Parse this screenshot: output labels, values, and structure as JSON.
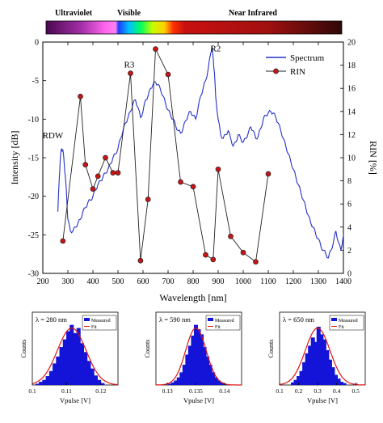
{
  "spectrum_bar": {
    "labels": [
      "Ultraviolet",
      "Visible",
      "Near Infrared"
    ]
  },
  "chart_data": [
    {
      "type": "line",
      "xlabel": "Wavelength [nm]",
      "ylabel": "Intensity [dB]",
      "y2label": "RIN [%]",
      "xlim": [
        200,
        1400
      ],
      "ylim": [
        -30,
        0
      ],
      "y2lim": [
        0,
        20
      ],
      "xticks": [
        200,
        300,
        400,
        500,
        600,
        700,
        800,
        900,
        1000,
        1100,
        1200,
        1300,
        1400
      ],
      "yticks": [
        0,
        -5,
        -10,
        -15,
        -20,
        -25,
        -30
      ],
      "y2ticks": [
        0,
        2,
        4,
        6,
        8,
        10,
        12,
        14,
        16,
        18,
        20
      ],
      "legend_position": "top-right",
      "annotations": [
        {
          "text": "RDW",
          "x": 240,
          "y": -12.5
        },
        {
          "text": "R3",
          "x": 545,
          "y": -3.3
        },
        {
          "text": "R2",
          "x": 890,
          "y": -1.2
        }
      ],
      "series": [
        {
          "name": "Spectrum",
          "axis": "left",
          "color": "#2432c8",
          "x": [
            260,
            265,
            270,
            275,
            280,
            285,
            290,
            295,
            300,
            310,
            320,
            330,
            340,
            350,
            360,
            370,
            380,
            390,
            400,
            410,
            420,
            430,
            440,
            450,
            460,
            470,
            480,
            490,
            500,
            510,
            520,
            530,
            540,
            550,
            560,
            570,
            580,
            590,
            600,
            610,
            620,
            630,
            640,
            650,
            660,
            670,
            680,
            690,
            700,
            710,
            720,
            730,
            740,
            750,
            760,
            770,
            780,
            790,
            800,
            810,
            820,
            830,
            840,
            850,
            860,
            870,
            875,
            880,
            885,
            890,
            900,
            910,
            920,
            930,
            940,
            950,
            960,
            970,
            980,
            990,
            1000,
            1010,
            1020,
            1030,
            1040,
            1050,
            1060,
            1070,
            1080,
            1090,
            1100,
            1110,
            1120,
            1130,
            1140,
            1150,
            1160,
            1170,
            1180,
            1190,
            1200,
            1210,
            1220,
            1230,
            1240,
            1250,
            1260,
            1270,
            1280,
            1290,
            1300,
            1310,
            1320,
            1330,
            1340,
            1350,
            1360,
            1370,
            1380,
            1390,
            1400
          ],
          "y": [
            -22,
            -18,
            -15,
            -13.8,
            -14,
            -15.5,
            -17.5,
            -20,
            -23,
            -24.5,
            -24.5,
            -24,
            -23.5,
            -23,
            -22,
            -21.5,
            -20.8,
            -20.5,
            -20,
            -19.2,
            -18.5,
            -18,
            -17.5,
            -17,
            -16.5,
            -15.8,
            -15,
            -14.5,
            -13.8,
            -12.5,
            -11.5,
            -10.5,
            -9.8,
            -9,
            -8,
            -7.5,
            -8.5,
            -9.8,
            -9,
            -7.5,
            -7,
            -6,
            -5.5,
            -5.2,
            -5.5,
            -6.2,
            -7,
            -8,
            -8.8,
            -9.5,
            -10,
            -10.8,
            -11.5,
            -11.8,
            -11.2,
            -10.2,
            -9.5,
            -9,
            -9.5,
            -10,
            -8.5,
            -7,
            -6,
            -5,
            -3.5,
            -1.5,
            -0.5,
            -2,
            -4,
            -7,
            -10,
            -12,
            -12.5,
            -12,
            -11.5,
            -12.5,
            -13.5,
            -13,
            -12,
            -12.5,
            -13,
            -12.5,
            -11.8,
            -11,
            -11.5,
            -12.5,
            -12.2,
            -11.2,
            -10,
            -9.5,
            -9.2,
            -9,
            -9.2,
            -9.8,
            -10.5,
            -11.5,
            -12.5,
            -13.5,
            -14.5,
            -15.5,
            -16.5,
            -17.5,
            -18.5,
            -19.5,
            -20.5,
            -21.5,
            -22.5,
            -23.5,
            -24,
            -25,
            -25.5,
            -26.5,
            -27,
            -27.5,
            -28,
            -27,
            -26,
            -24.5,
            -26,
            -27,
            -25
          ]
        },
        {
          "name": "RIN",
          "axis": "right",
          "color": "#222222",
          "marker_color": "#c81414",
          "x": [
            280,
            350,
            370,
            400,
            420,
            450,
            480,
            500,
            550,
            590,
            620,
            650,
            700,
            750,
            800,
            850,
            880,
            900,
            950,
            1000,
            1050,
            1100
          ],
          "y": [
            2.8,
            15.3,
            9.4,
            7.3,
            8.4,
            10.0,
            8.7,
            8.7,
            17.3,
            1.1,
            6.4,
            19.4,
            17.2,
            7.9,
            7.5,
            1.6,
            1.2,
            9.0,
            3.2,
            1.8,
            1.0,
            8.6
          ]
        }
      ]
    },
    {
      "type": "bar",
      "title": "λ = 280 nm",
      "xlabel": "Vpulse [V]",
      "ylabel": "Counts",
      "xlim": [
        0.1,
        0.125
      ],
      "xticks": [
        0.1,
        0.11,
        0.12
      ],
      "legend_position": "top-right",
      "series": [
        {
          "name": "Measured",
          "color": "#1414d8"
        },
        {
          "name": "Fit",
          "color": "#e01414"
        }
      ],
      "bins_x": [
        0.1015,
        0.1025,
        0.1035,
        0.1045,
        0.1055,
        0.1065,
        0.1075,
        0.1085,
        0.1095,
        0.1105,
        0.1115,
        0.1125,
        0.1135,
        0.1145,
        0.1155,
        0.1165,
        0.1175,
        0.1185,
        0.1195,
        0.1205
      ],
      "values": [
        0.02,
        0.05,
        0.08,
        0.14,
        0.22,
        0.34,
        0.45,
        0.6,
        0.72,
        0.85,
        0.95,
        0.82,
        0.9,
        0.66,
        0.52,
        0.38,
        0.26,
        0.15,
        0.08,
        0.03
      ],
      "fit_mean": 0.1115,
      "fit_sigma": 0.0042
    },
    {
      "type": "bar",
      "title": "λ = 590 nm",
      "xlabel": "Vpulse [V]",
      "ylabel": "Counts",
      "xlim": [
        0.128,
        0.143
      ],
      "xticks": [
        0.13,
        0.135,
        0.14
      ],
      "legend_position": "top-right",
      "series": [
        {
          "name": "Measured",
          "color": "#1414d8"
        },
        {
          "name": "Fit",
          "color": "#e01414"
        }
      ],
      "bins_x": [
        0.1305,
        0.131,
        0.1315,
        0.132,
        0.1325,
        0.133,
        0.1335,
        0.134,
        0.1345,
        0.135,
        0.1355,
        0.136,
        0.1365,
        0.137,
        0.1375,
        0.138,
        0.1385,
        0.139,
        0.1395,
        0.14
      ],
      "values": [
        0.02,
        0.04,
        0.07,
        0.12,
        0.2,
        0.32,
        0.48,
        0.62,
        0.78,
        0.95,
        0.88,
        0.8,
        0.6,
        0.45,
        0.32,
        0.2,
        0.12,
        0.07,
        0.04,
        0.02
      ],
      "fit_mean": 0.135,
      "fit_sigma": 0.0018
    },
    {
      "type": "bar",
      "title": "λ = 650 nm",
      "xlabel": "Vpulse [V]",
      "ylabel": "Counts",
      "xlim": [
        0.1,
        0.55
      ],
      "xticks": [
        0.1,
        0.2,
        0.3,
        0.4,
        0.5
      ],
      "legend_position": "top-right",
      "series": [
        {
          "name": "Measured",
          "color": "#1414d8"
        },
        {
          "name": "Fit",
          "color": "#e01414"
        }
      ],
      "bins_x": [
        0.17,
        0.185,
        0.2,
        0.215,
        0.23,
        0.245,
        0.26,
        0.275,
        0.29,
        0.305,
        0.32,
        0.335,
        0.35,
        0.365,
        0.38,
        0.395,
        0.41,
        0.425,
        0.44,
        0.5
      ],
      "values": [
        0.04,
        0.08,
        0.14,
        0.22,
        0.36,
        0.5,
        0.62,
        0.75,
        0.68,
        0.92,
        0.8,
        0.72,
        0.55,
        0.4,
        0.28,
        0.16,
        0.1,
        0.05,
        0.03,
        0.02
      ],
      "fit_mean": 0.3,
      "fit_sigma": 0.065
    }
  ]
}
